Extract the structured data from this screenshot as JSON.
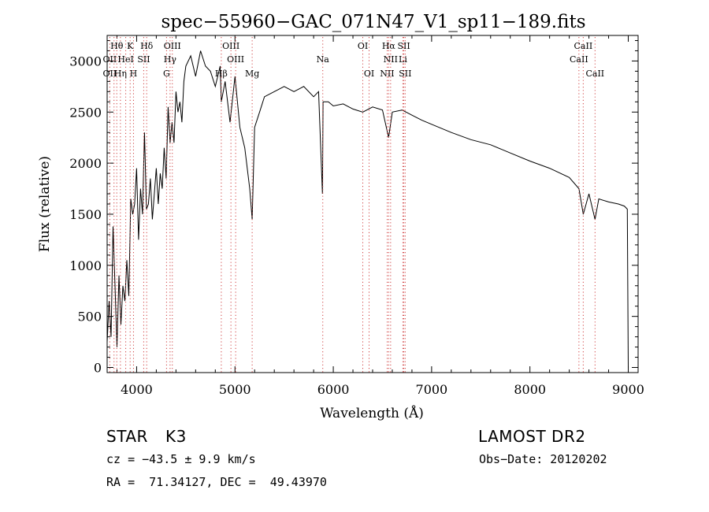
{
  "chart_data": {
    "type": "line",
    "title": "spec−55960−GAC_071N47_V1_sp11−189.fits",
    "xlabel": "Wavelength (Å)",
    "ylabel": "Flux (relative)",
    "xlim": [
      3700,
      9100
    ],
    "ylim": [
      -50,
      3250
    ],
    "xticks": [
      4000,
      5000,
      6000,
      7000,
      8000,
      9000
    ],
    "yticks": [
      0,
      500,
      1000,
      1500,
      2000,
      2500,
      3000
    ],
    "grid": false,
    "series": [
      {
        "x": [
          3700,
          3720,
          3740,
          3760,
          3780,
          3800,
          3820,
          3840,
          3860,
          3880,
          3900,
          3920,
          3940,
          3960,
          3980,
          4000,
          4020,
          4040,
          4060,
          4080,
          4100,
          4120,
          4140,
          4160,
          4180,
          4200,
          4220,
          4240,
          4260,
          4280,
          4300,
          4320,
          4340,
          4360,
          4380,
          4400,
          4420,
          4440,
          4460,
          4480,
          4500,
          4550,
          4600,
          4650,
          4700,
          4750,
          4800,
          4850,
          4861,
          4900,
          4950,
          5000,
          5050,
          5100,
          5150,
          5175,
          5200,
          5250,
          5300,
          5400,
          5500,
          5600,
          5700,
          5800,
          5850,
          5890,
          5896,
          5950,
          6000,
          6100,
          6200,
          6300,
          6400,
          6500,
          6563,
          6600,
          6700,
          6800,
          6900,
          7000,
          7200,
          7400,
          7600,
          7800,
          8000,
          8200,
          8400,
          8498,
          8542,
          8600,
          8662,
          8700,
          8800,
          8900,
          8960,
          8990,
          9000
        ],
        "y": [
          250,
          650,
          300,
          1380,
          800,
          200,
          900,
          420,
          800,
          650,
          1050,
          700,
          1650,
          1500,
          1600,
          1950,
          1250,
          1750,
          1500,
          2300,
          1550,
          1600,
          1850,
          1450,
          1700,
          1950,
          1600,
          1900,
          1750,
          2150,
          1850,
          2550,
          2200,
          2400,
          2200,
          2700,
          2500,
          2600,
          2400,
          2800,
          2950,
          3050,
          2850,
          3100,
          2950,
          2900,
          2750,
          2950,
          2600,
          2800,
          2400,
          2850,
          2350,
          2150,
          1750,
          1450,
          2350,
          2500,
          2650,
          2700,
          2750,
          2700,
          2750,
          2650,
          2700,
          1700,
          2600,
          2600,
          2560,
          2580,
          2530,
          2500,
          2550,
          2520,
          2250,
          2500,
          2520,
          2470,
          2420,
          2380,
          2300,
          2230,
          2180,
          2100,
          2020,
          1950,
          1860,
          1750,
          1500,
          1700,
          1450,
          1650,
          1620,
          1600,
          1580,
          1550,
          0
        ]
      }
    ],
    "line_labels": [
      {
        "text": "Hθ",
        "x": 3798,
        "row": 0
      },
      {
        "text": "K",
        "x": 3934,
        "row": 0
      },
      {
        "text": "Hδ",
        "x": 4102,
        "row": 0
      },
      {
        "text": "OIII",
        "x": 4363,
        "row": 0
      },
      {
        "text": "OIII",
        "x": 4959,
        "row": 0
      },
      {
        "text": "OI",
        "x": 6300,
        "row": 0
      },
      {
        "text": "Hα",
        "x": 6563,
        "row": 0
      },
      {
        "text": "SII",
        "x": 6717,
        "row": 0
      },
      {
        "text": "CaII",
        "x": 8542,
        "row": 0
      },
      {
        "text": "OII",
        "x": 3727,
        "row": 1
      },
      {
        "text": "HeI",
        "x": 3889,
        "row": 1
      },
      {
        "text": "SII",
        "x": 4072,
        "row": 1
      },
      {
        "text": "Hγ",
        "x": 4340,
        "row": 1
      },
      {
        "text": "OIII",
        "x": 5007,
        "row": 1
      },
      {
        "text": "Na",
        "x": 5893,
        "row": 1
      },
      {
        "text": "NII",
        "x": 6583,
        "row": 1
      },
      {
        "text": "Li",
        "x": 6708,
        "row": 1
      },
      {
        "text": "CaII",
        "x": 8498,
        "row": 1
      },
      {
        "text": "OII",
        "x": 3727,
        "row": 2
      },
      {
        "text": "Hη",
        "x": 3835,
        "row": 2
      },
      {
        "text": "H",
        "x": 3968,
        "row": 2
      },
      {
        "text": "G",
        "x": 4304,
        "row": 2
      },
      {
        "text": "Hβ",
        "x": 4861,
        "row": 2
      },
      {
        "text": "Mg",
        "x": 5175,
        "row": 2
      },
      {
        "text": "OI",
        "x": 6364,
        "row": 2
      },
      {
        "text": "NII",
        "x": 6548,
        "row": 2
      },
      {
        "text": "SII",
        "x": 6731,
        "row": 2
      },
      {
        "text": "CaII",
        "x": 8662,
        "row": 2
      }
    ],
    "line_markers": [
      3727,
      3770,
      3798,
      3835,
      3889,
      3934,
      3968,
      4072,
      4102,
      4304,
      4340,
      4363,
      4861,
      4959,
      5007,
      5175,
      5893,
      6300,
      6364,
      6548,
      6563,
      6583,
      6708,
      6717,
      6731,
      8498,
      8542,
      8662
    ]
  },
  "info": {
    "class_label": "STAR",
    "subclass": "K3",
    "survey": "LAMOST DR2",
    "cz": "cz = −43.5 ± 9.9 km/s",
    "obs_date": "Obs−Date: 20120202",
    "coords": "RA =  71.34127, DEC =  49.43970"
  }
}
